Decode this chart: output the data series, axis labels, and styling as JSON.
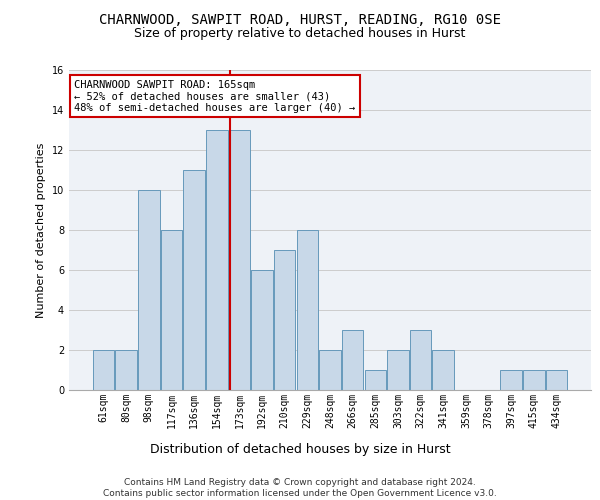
{
  "title": "CHARNWOOD, SAWPIT ROAD, HURST, READING, RG10 0SE",
  "subtitle": "Size of property relative to detached houses in Hurst",
  "xlabel": "Distribution of detached houses by size in Hurst",
  "ylabel": "Number of detached properties",
  "categories": [
    "61sqm",
    "80sqm",
    "98sqm",
    "117sqm",
    "136sqm",
    "154sqm",
    "173sqm",
    "192sqm",
    "210sqm",
    "229sqm",
    "248sqm",
    "266sqm",
    "285sqm",
    "303sqm",
    "322sqm",
    "341sqm",
    "359sqm",
    "378sqm",
    "397sqm",
    "415sqm",
    "434sqm"
  ],
  "values": [
    2,
    2,
    10,
    8,
    11,
    13,
    13,
    6,
    7,
    8,
    2,
    3,
    1,
    2,
    3,
    2,
    0,
    0,
    1,
    1,
    1
  ],
  "bar_color": "#c8d8e8",
  "bar_edge_color": "#6699bb",
  "grid_color": "#cccccc",
  "background_color": "#ffffff",
  "plot_bg_color": "#eef2f7",
  "annotation_text": "CHARNWOOD SAWPIT ROAD: 165sqm\n← 52% of detached houses are smaller (43)\n48% of semi-detached houses are larger (40) →",
  "annotation_box_color": "#ffffff",
  "annotation_box_edge_color": "#cc0000",
  "red_line_color": "#cc0000",
  "footer": "Contains HM Land Registry data © Crown copyright and database right 2024.\nContains public sector information licensed under the Open Government Licence v3.0.",
  "ylim": [
    0,
    16
  ],
  "yticks": [
    0,
    2,
    4,
    6,
    8,
    10,
    12,
    14,
    16
  ],
  "title_fontsize": 10,
  "subtitle_fontsize": 9,
  "xlabel_fontsize": 9,
  "ylabel_fontsize": 8,
  "tick_fontsize": 7,
  "annotation_fontsize": 7.5,
  "footer_fontsize": 6.5
}
